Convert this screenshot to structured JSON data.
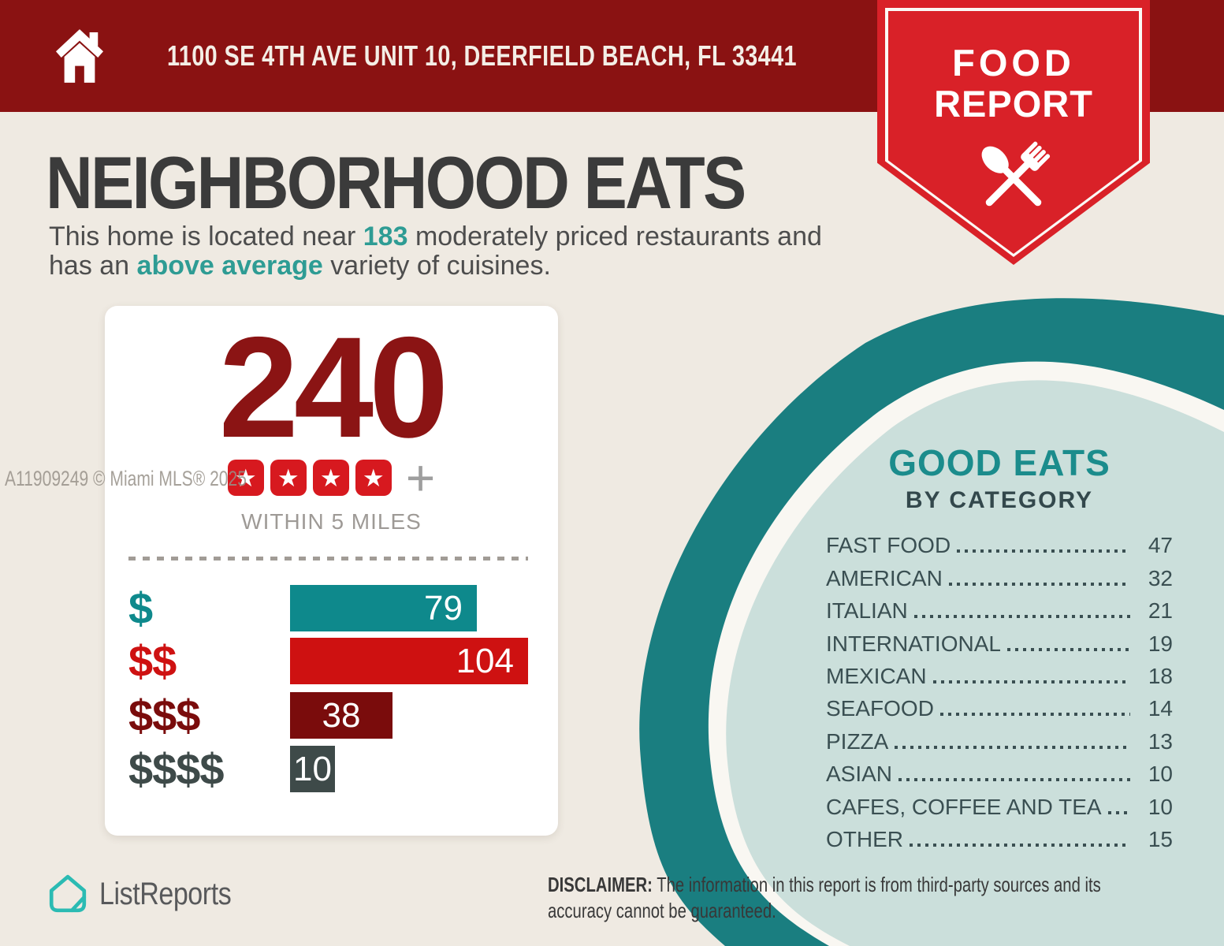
{
  "colors": {
    "background": "#EFEAE2",
    "banner_red": "#8A1212",
    "ribbon_red": "#D92128",
    "accent_teal": "#2E9C94",
    "count_red": "#8B1414",
    "star_red": "#D7191F",
    "muted_gray": "#9E9A96",
    "ring_teal": "#1A7E80",
    "circle_fill": "#CBDFDB",
    "good_eats_teal": "#1B8C8C",
    "slate_text": "#3A4F52",
    "logo_teal": "#2BBBB3"
  },
  "address_bar": {
    "address": "1100 SE 4TH AVE UNIT 10, DEERFIELD BEACH, FL 33441"
  },
  "ribbon": {
    "line1": "FOOD",
    "line2": "REPORT"
  },
  "headline": "NEIGHBORHOOD EATS",
  "intro": {
    "seg1": "This home is located near ",
    "count": "183",
    "seg2": " moderately priced restaurants and",
    "seg3": "has an ",
    "highlight": "above average",
    "seg4": " variety of cuisines."
  },
  "summary_card": {
    "count": "240",
    "star_count": 4,
    "star_glyph": "★",
    "plus": "+",
    "radius_label": "WITHIN 5 MILES"
  },
  "chart_data": [
    {
      "type": "bar",
      "orientation": "horizontal",
      "title": "240",
      "subtitle": "WITHIN 5 MILES",
      "rating_stars": 4,
      "rating_suffix": "+",
      "categories": [
        "$",
        "$$",
        "$$$",
        "$$$$"
      ],
      "values": [
        79,
        104,
        38,
        10
      ],
      "bar_colors": [
        "#0E898C",
        "#CE1111",
        "#7A0C0C",
        "#3E4A49"
      ],
      "value_labels_inside": true,
      "axis": "none",
      "grid": false
    },
    {
      "type": "table",
      "title": "GOOD EATS",
      "subtitle": "BY CATEGORY",
      "rows": [
        [
          "FAST FOOD",
          47
        ],
        [
          "AMERICAN",
          32
        ],
        [
          "ITALIAN",
          21
        ],
        [
          "INTERNATIONAL",
          19
        ],
        [
          "MEXICAN",
          18
        ],
        [
          "SEAFOOD",
          14
        ],
        [
          "PIZZA",
          13
        ],
        [
          "ASIAN",
          10
        ],
        [
          "CAFES, COFFEE AND TEA",
          10
        ],
        [
          "OTHER",
          15
        ]
      ]
    }
  ],
  "good_eats": {
    "title": "GOOD EATS",
    "subtitle": "BY CATEGORY",
    "items": [
      {
        "label": "FAST FOOD",
        "value": "47"
      },
      {
        "label": "AMERICAN",
        "value": "32"
      },
      {
        "label": "ITALIAN",
        "value": "21"
      },
      {
        "label": "INTERNATIONAL",
        "value": "19"
      },
      {
        "label": "MEXICAN",
        "value": "18"
      },
      {
        "label": "SEAFOOD",
        "value": "14"
      },
      {
        "label": "PIZZA",
        "value": "13"
      },
      {
        "label": "ASIAN",
        "value": "10"
      },
      {
        "label": "CAFES, COFFEE AND TEA",
        "value": "10"
      },
      {
        "label": "OTHER",
        "value": "15"
      }
    ]
  },
  "watermark": "A11909249 © Miami MLS® 2025",
  "footer": {
    "brand": "ListReports",
    "disclaimer_label": "DISCLAIMER:",
    "disclaimer_rest": " The information in this report is from third-party sources and its",
    "disclaimer_line2": "accuracy cannot be guaranteed."
  }
}
